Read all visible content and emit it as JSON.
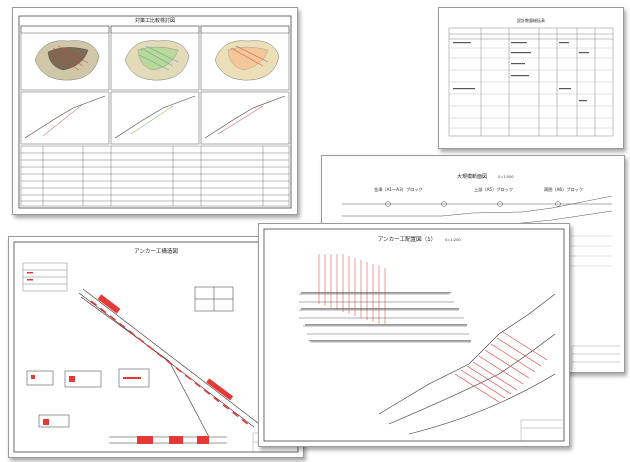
{
  "sheets": {
    "comparison": {
      "title": "対策工比較検討図"
    },
    "table": {
      "title": "設計数量総括表"
    },
    "profile": {
      "title": "大規模断面図",
      "scale": "S=1:500",
      "block_left": "金津（A1〜A3）ブロック",
      "block_mid": "上部（A5）ブロック",
      "block_right": "周囲（A6）ブロック"
    },
    "structure": {
      "title": "アンカー工構造図"
    },
    "layout": {
      "title": "アンカー工配置図（1）",
      "scale": "S=1:200"
    }
  },
  "colors": {
    "anchor": "#e53935",
    "line": "#333333",
    "paper": "#ffffff"
  }
}
